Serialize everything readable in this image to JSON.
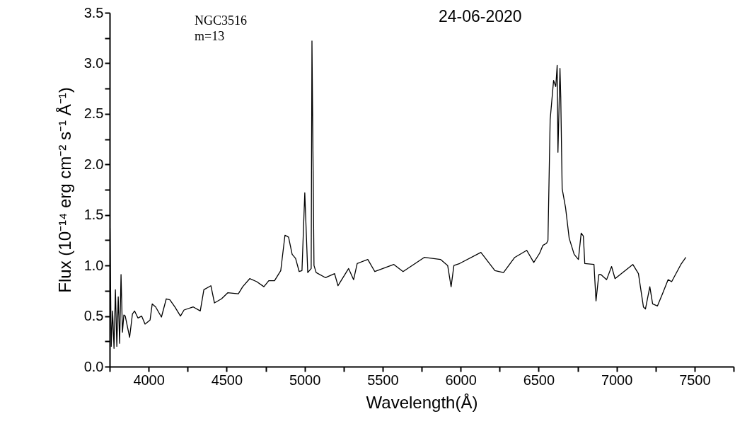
{
  "chart_data": {
    "type": "line",
    "title": "24-06-2020",
    "xlabel": "Wavelength(Å)",
    "ylabel": "Flux (10⁻¹⁴ erg cm⁻² s⁻¹ Å⁻¹)",
    "annotations": [
      "NGC3516",
      "m=13"
    ],
    "xlim": [
      3750,
      7750
    ],
    "xticks": [
      {
        "value": 3750,
        "label": null
      },
      4000,
      {
        "value": 4250,
        "label": null
      },
      4500,
      {
        "value": 4750,
        "label": null
      },
      5000,
      {
        "value": 5250,
        "label": null
      },
      5500,
      {
        "value": 5750,
        "label": null
      },
      6000,
      {
        "value": 6250,
        "label": null
      },
      6500,
      {
        "value": 6750,
        "label": null
      },
      7000,
      {
        "value": 7250,
        "label": null
      },
      7500,
      {
        "value": 7750,
        "label": null
      }
    ],
    "ylim": [
      0,
      3.5
    ],
    "yticks": [
      {
        "value": 0,
        "label": "0.0"
      },
      {
        "value": 0.25,
        "label": null
      },
      {
        "value": 0.5,
        "label": "0.5"
      },
      {
        "value": 0.75,
        "label": null
      },
      {
        "value": 1,
        "label": "1.0"
      },
      {
        "value": 1.25,
        "label": null
      },
      {
        "value": 1.5,
        "label": "1.5"
      },
      {
        "value": 1.75,
        "label": null
      },
      {
        "value": 2,
        "label": "2.0"
      },
      {
        "value": 2.25,
        "label": null
      },
      {
        "value": 2.5,
        "label": "2.5"
      },
      {
        "value": 2.75,
        "label": null
      },
      {
        "value": 3,
        "label": "3.0"
      },
      {
        "value": 3.25,
        "label": null
      },
      {
        "value": 3.5,
        "label": "3.5"
      }
    ],
    "x": [
      3752,
      3760,
      3769,
      3778,
      3787,
      3796,
      3805,
      3814,
      3823,
      3832,
      3841,
      3850,
      3878,
      3896,
      3910,
      3932,
      3955,
      3977,
      4009,
      4023,
      4045,
      4082,
      4113,
      4136,
      4168,
      4204,
      4227,
      4286,
      4331,
      4354,
      4399,
      4422,
      4467,
      4507,
      4575,
      4603,
      4648,
      4693,
      4739,
      4770,
      4807,
      4847,
      4874,
      4897,
      4920,
      4942,
      4965,
      4983,
      5001,
      5020,
      5042,
      5047,
      5060,
      5074,
      5133,
      5192,
      5214,
      5282,
      5314,
      5337,
      5405,
      5450,
      5572,
      5631,
      5767,
      5871,
      5917,
      5939,
      5957,
      5994,
      6130,
      6220,
      6275,
      6347,
      6424,
      6469,
      6506,
      6528,
      6551,
      6560,
      6574,
      6596,
      6610,
      6619,
      6624,
      6637,
      6642,
      6651,
      6673,
      6696,
      6728,
      6755,
      6773,
      6787,
      6796,
      6855,
      6868,
      6886,
      6900,
      6936,
      6968,
      6990,
      7104,
      7140,
      7172,
      7185,
      7213,
      7231,
      7262,
      7294,
      7330,
      7353,
      7412,
      7444
    ],
    "series": [
      {
        "color": "#000000",
        "values": [
          1.37,
          0.2,
          0.55,
          0.18,
          0.76,
          0.2,
          0.69,
          0.23,
          0.91,
          0.34,
          0.51,
          0.5,
          0.29,
          0.52,
          0.55,
          0.48,
          0.5,
          0.42,
          0.46,
          0.62,
          0.59,
          0.49,
          0.67,
          0.66,
          0.59,
          0.5,
          0.56,
          0.59,
          0.55,
          0.76,
          0.8,
          0.63,
          0.67,
          0.73,
          0.72,
          0.79,
          0.87,
          0.84,
          0.79,
          0.85,
          0.85,
          0.95,
          1.3,
          1.28,
          1.11,
          1.07,
          0.94,
          0.95,
          1.72,
          0.93,
          0.97,
          3.22,
          1.0,
          0.93,
          0.88,
          0.92,
          0.8,
          0.97,
          0.86,
          1.02,
          1.06,
          0.94,
          1.01,
          0.94,
          1.08,
          1.06,
          1.0,
          0.79,
          1.0,
          1.02,
          1.13,
          0.95,
          0.93,
          1.08,
          1.15,
          1.03,
          1.12,
          1.2,
          1.22,
          1.25,
          2.44,
          2.83,
          2.77,
          2.98,
          2.12,
          2.95,
          2.67,
          1.76,
          1.57,
          1.27,
          1.11,
          1.06,
          1.32,
          1.29,
          1.02,
          1.01,
          0.65,
          0.91,
          0.91,
          0.86,
          0.99,
          0.87,
          1.01,
          0.92,
          0.59,
          0.57,
          0.79,
          0.62,
          0.6,
          0.72,
          0.86,
          0.84,
          1.01,
          1.08
        ]
      }
    ]
  }
}
